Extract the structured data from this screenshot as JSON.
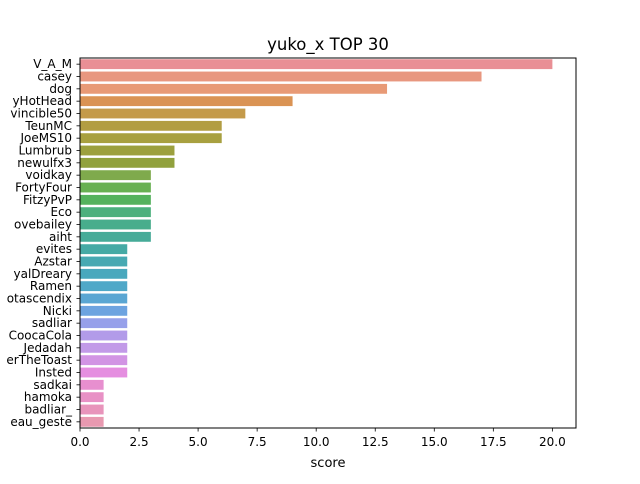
{
  "chart_data": {
    "type": "bar",
    "orientation": "horizontal",
    "title": "yuko_x TOP 30",
    "xlabel": "score",
    "ylabel": "",
    "xlim": [
      0,
      21
    ],
    "xticks": [
      0.0,
      2.5,
      5.0,
      7.5,
      10.0,
      12.5,
      15.0,
      17.5,
      20.0
    ],
    "xtick_labels": [
      "0.0",
      "2.5",
      "5.0",
      "7.5",
      "10.0",
      "12.5",
      "15.0",
      "17.5",
      "20.0"
    ],
    "grid": false,
    "legend": "none",
    "categories": [
      "V_A_M",
      "casey",
      "dog",
      "yHotHead",
      "vincible50",
      "TeunMC",
      "JoeMS10",
      "Lumbrub",
      "newulfx3",
      "voidkay",
      "FortyFour",
      "FitzyPvP",
      "Eco",
      "ovebailey",
      "aiht",
      "evites",
      "Azstar",
      "yalDreary",
      "Ramen",
      "otascendix",
      "Nicki",
      "sadliar",
      "CoocaCola",
      "Jedadah",
      "erTheToast",
      "Insted",
      "sadkai",
      "hamoka",
      "badliar_",
      "eau_geste"
    ],
    "values": [
      20,
      17,
      13,
      9,
      7,
      6,
      6,
      4,
      4,
      3,
      3,
      3,
      3,
      3,
      3,
      2,
      2,
      2,
      2,
      2,
      2,
      2,
      2,
      2,
      2,
      2,
      1,
      1,
      1,
      1
    ],
    "colors": [
      "#e98f95",
      "#e8977f",
      "#e89a76",
      "#da9354",
      "#c49a4a",
      "#b29d42",
      "#a8a040",
      "#9ca03e",
      "#91a13d",
      "#7faa4c",
      "#68b052",
      "#55b25d",
      "#4cb07d",
      "#48ad8c",
      "#46ab98",
      "#45aaa5",
      "#47a9b2",
      "#49a8bd",
      "#4fa8c8",
      "#5aa6d3",
      "#6da3e0",
      "#96a0ea",
      "#b29be9",
      "#c29ae8",
      "#d294e4",
      "#e58ee0",
      "#e78fcf",
      "#e891c5",
      "#e894bb",
      "#e899b0"
    ]
  }
}
